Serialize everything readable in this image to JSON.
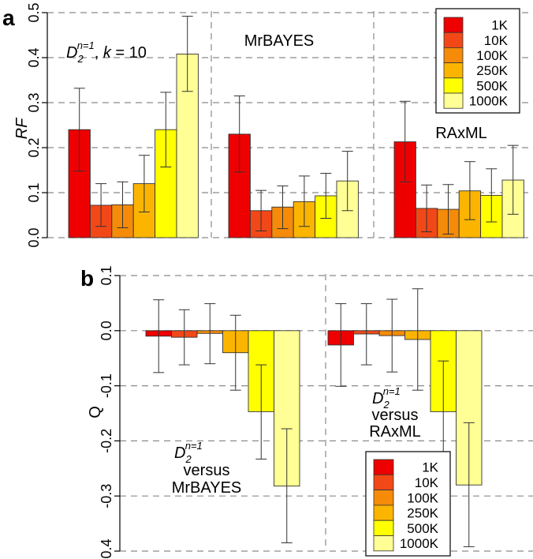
{
  "legend_labels": [
    "1K",
    "10K",
    "100K",
    "250K",
    "500K",
    "1000K"
  ],
  "colors": [
    "#EE0000",
    "#F24818",
    "#F58B09",
    "#FBB500",
    "#FFFF00",
    "#FFFF96"
  ],
  "chart_data": [
    {
      "type": "bar",
      "panel_label": "a",
      "ylabel": "RF",
      "ylim": [
        0,
        0.5
      ],
      "yticks": [
        "0.0",
        "0.1",
        "0.2",
        "0.3",
        "0.4",
        "0.5"
      ],
      "grid": true,
      "legend": "top-right",
      "groups": [
        {
          "label_main": "D",
          "label_sub": "2",
          "label_sup": "n=1",
          "label_rest": ", ",
          "label_k": "k",
          "label_eq": " = 10",
          "values": [
            0.24,
            0.072,
            0.073,
            0.12,
            0.24,
            0.408
          ],
          "err_low": [
            0.148,
            0.025,
            0.022,
            0.057,
            0.157,
            0.325
          ],
          "err_high": [
            0.332,
            0.12,
            0.124,
            0.183,
            0.323,
            0.492
          ]
        },
        {
          "label": "MrBAYES",
          "values": [
            0.23,
            0.06,
            0.068,
            0.08,
            0.093,
            0.126
          ],
          "err_low": [
            0.146,
            0.015,
            0.02,
            0.025,
            0.043,
            0.06
          ],
          "err_high": [
            0.315,
            0.105,
            0.115,
            0.137,
            0.143,
            0.192
          ]
        },
        {
          "label": "RAxML",
          "values": [
            0.213,
            0.065,
            0.063,
            0.104,
            0.094,
            0.128
          ],
          "err_low": [
            0.124,
            0.013,
            0.008,
            0.04,
            0.035,
            0.052
          ],
          "err_high": [
            0.303,
            0.117,
            0.118,
            0.169,
            0.153,
            0.205
          ]
        }
      ]
    },
    {
      "type": "bar",
      "panel_label": "b",
      "ylabel": "Q",
      "ylim": [
        -0.4,
        0.1
      ],
      "yticks": [
        "-0.4",
        "-0.3",
        "-0.2",
        "-0.1",
        "0.0",
        "0.1"
      ],
      "grid": true,
      "legend": "bottom-right",
      "groups": [
        {
          "label_main": "D",
          "label_sub": "2",
          "label_sup": "n=1",
          "label_line2": "versus",
          "label_line3": "MrBAYES",
          "values": [
            -0.01,
            -0.012,
            -0.005,
            -0.04,
            -0.147,
            -0.282
          ],
          "err_low": [
            -0.076,
            -0.062,
            -0.06,
            -0.108,
            -0.233,
            -0.385
          ],
          "err_high": [
            0.056,
            0.038,
            0.049,
            0.028,
            -0.062,
            -0.178
          ]
        },
        {
          "label_main": "D",
          "label_sub": "2",
          "label_sup": "n=1",
          "label_line2": "versus",
          "label_line3": "RAxML",
          "values": [
            -0.026,
            -0.006,
            -0.009,
            -0.016,
            -0.147,
            -0.28
          ],
          "err_low": [
            -0.101,
            -0.062,
            -0.075,
            -0.108,
            -0.239,
            -0.392
          ],
          "err_high": [
            0.049,
            0.049,
            0.057,
            0.076,
            -0.055,
            -0.167
          ]
        }
      ]
    }
  ]
}
